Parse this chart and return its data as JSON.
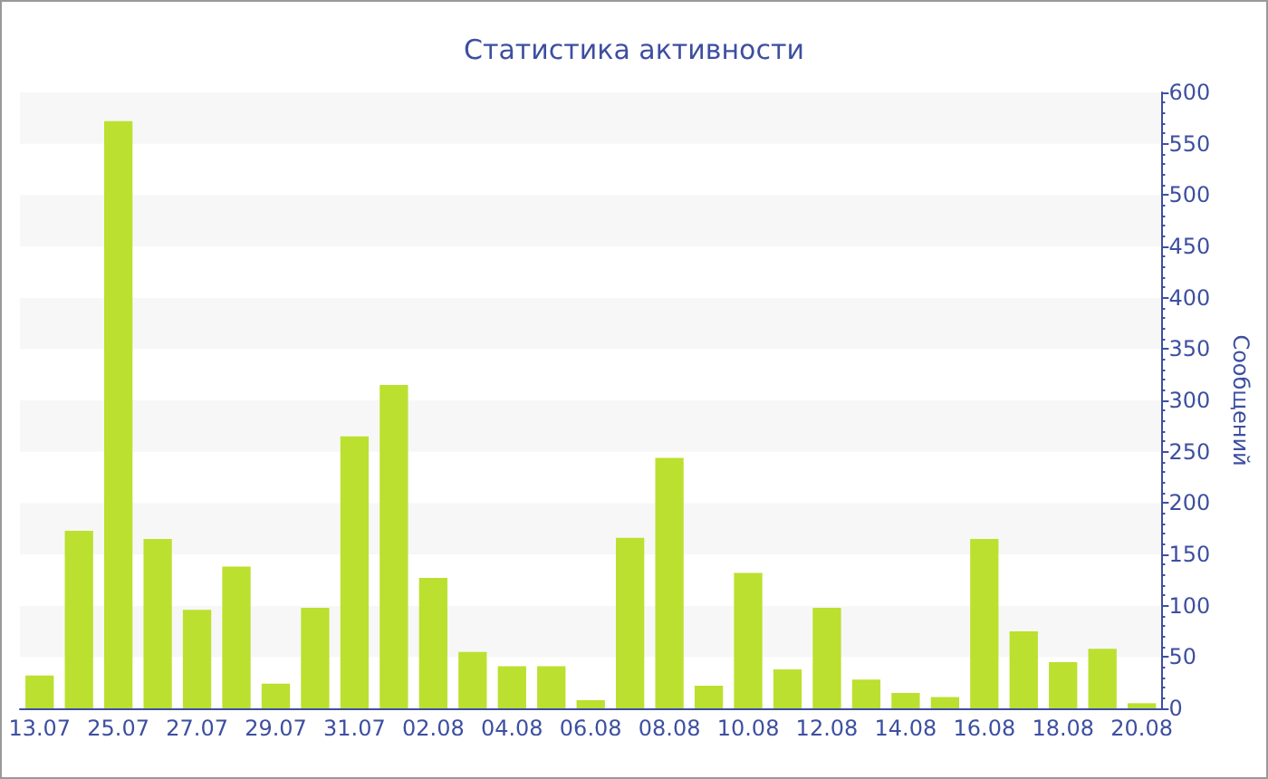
{
  "chart_data": {
    "type": "bar",
    "title": "Статистика активности",
    "ylabel": "Сообщений",
    "categories": [
      "13.07",
      null,
      "25.07",
      null,
      "27.07",
      null,
      "29.07",
      null,
      "31.07",
      null,
      "02.08",
      null,
      "04.08",
      null,
      "06.08",
      null,
      "08.08",
      null,
      "10.08",
      null,
      "12.08",
      null,
      "14.08",
      null,
      "16.08",
      null,
      "18.08",
      null,
      "20.08"
    ],
    "values": [
      32,
      173,
      572,
      165,
      96,
      138,
      24,
      98,
      265,
      315,
      127,
      55,
      41,
      41,
      8,
      166,
      244,
      22,
      132,
      38,
      98,
      28,
      15,
      11,
      165,
      75,
      45,
      58,
      5
    ],
    "color": "#bbe02f",
    "ylim": [
      0,
      600
    ],
    "yticks": [
      0,
      50,
      100,
      150,
      200,
      250,
      300,
      350,
      400,
      450,
      500,
      550,
      600
    ]
  }
}
